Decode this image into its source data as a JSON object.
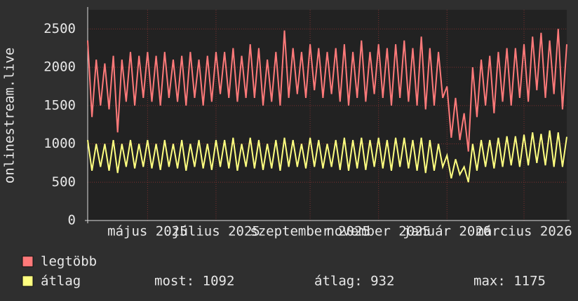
{
  "chart_data": {
    "type": "line",
    "y_label": "onlinestream.live",
    "xlim": [
      0,
      112
    ],
    "xticks": [
      {
        "value": 14,
        "label": "május 2025"
      },
      {
        "value": 30,
        "label": "július 2025"
      },
      {
        "value": 52,
        "label": "szeptember 2025"
      },
      {
        "value": 68,
        "label": "november 2025"
      },
      {
        "value": 84,
        "label": "január 2026"
      },
      {
        "value": 102,
        "label": "március 2026"
      }
    ],
    "ylim": [
      0,
      2750
    ],
    "yticks": [
      0,
      500,
      1000,
      1500,
      2000,
      2500
    ],
    "grid": true,
    "series": [
      {
        "name": "legtöbb",
        "color": "#ff7a7a",
        "values": [
          2350,
          1350,
          2100,
          1500,
          2050,
          1450,
          2150,
          1150,
          2100,
          1550,
          2200,
          1500,
          2150,
          1600,
          2200,
          1550,
          2150,
          1500,
          2200,
          1600,
          2100,
          1550,
          2150,
          1500,
          2200,
          1600,
          2100,
          1500,
          2150,
          1550,
          2200,
          1650,
          2200,
          1600,
          2250,
          1550,
          2150,
          1600,
          2300,
          1600,
          2250,
          1500,
          2100,
          1550,
          2200,
          1500,
          2480,
          1600,
          2250,
          1650,
          2200,
          1600,
          2300,
          1700,
          2250,
          1600,
          2200,
          1650,
          2250,
          1550,
          2300,
          1500,
          2200,
          1600,
          2350,
          1550,
          2200,
          1650,
          2300,
          1600,
          2250,
          1500,
          2300,
          1600,
          2350,
          1550,
          2250,
          1500,
          2400,
          1450,
          2250,
          1500,
          2200,
          1600,
          1750,
          1080,
          1600,
          1050,
          1400,
          900,
          2000,
          1350,
          2100,
          1500,
          2150,
          1400,
          2200,
          1550,
          2250,
          1500,
          2250,
          1600,
          2300,
          1550,
          2400,
          1700,
          2450,
          1600,
          2350,
          1650,
          2500,
          1450,
          2300
        ]
      },
      {
        "name": "átlag",
        "color": "#ffff80",
        "values": [
          1050,
          650,
          1000,
          700,
          1000,
          650,
          1050,
          620,
          1000,
          700,
          1050,
          680,
          1000,
          700,
          1050,
          680,
          1000,
          660,
          1050,
          700,
          1000,
          680,
          1050,
          650,
          1000,
          700,
          1050,
          680,
          1000,
          660,
          1050,
          700,
          1050,
          680,
          1080,
          650,
          1000,
          700,
          1080,
          680,
          1050,
          660,
          1000,
          680,
          1050,
          650,
          1080,
          700,
          1050,
          700,
          1000,
          680,
          1080,
          700,
          1050,
          680,
          1000,
          700,
          1050,
          660,
          1080,
          650,
          1050,
          680,
          1080,
          660,
          1050,
          700,
          1080,
          680,
          1050,
          650,
          1080,
          700,
          1080,
          680,
          1050,
          650,
          1080,
          620,
          1050,
          650,
          1000,
          700,
          850,
          550,
          800,
          600,
          700,
          500,
          1000,
          650,
          1050,
          700,
          1050,
          680,
          1080,
          700,
          1100,
          720,
          1100,
          700,
          1120,
          720,
          1150,
          750,
          1130,
          720,
          1175,
          700,
          1150,
          700,
          1092
        ]
      }
    ],
    "stats": [
      "most: 1092",
      "átlag: 932",
      "max: 1175"
    ]
  }
}
